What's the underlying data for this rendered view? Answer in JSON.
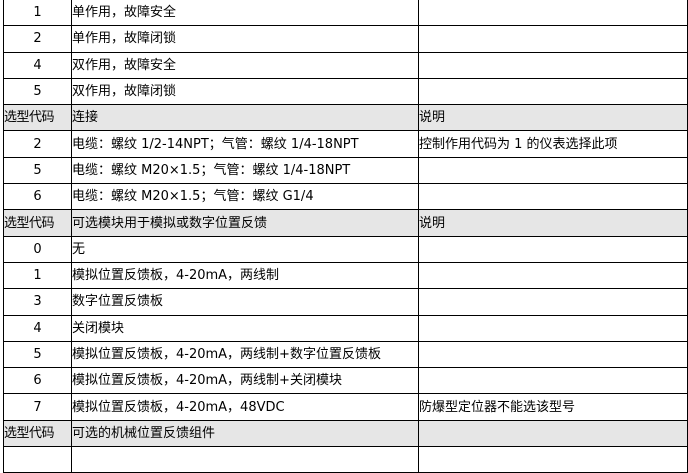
{
  "rows": [
    {
      "type": "row",
      "code": "1",
      "desc": "单作用，故障安全",
      "note": ""
    },
    {
      "type": "row",
      "code": "2",
      "desc": "单作用，故障闭锁",
      "note": ""
    },
    {
      "type": "row",
      "code": "4",
      "desc": "双作用，故障安全",
      "note": ""
    },
    {
      "type": "row",
      "code": "5",
      "desc": "双作用，故障闭锁",
      "note": ""
    },
    {
      "type": "header",
      "code": "选型代码",
      "desc": "连接",
      "note": "说明"
    },
    {
      "type": "row",
      "code": "2",
      "desc": "电缆：螺纹 1/2-14NPT；气管：螺纹 1/4-18NPT",
      "note": "控制作用代码为 1 的仪表选择此项"
    },
    {
      "type": "row",
      "code": "5",
      "desc": "电缆：螺纹 M20×1.5；气管：螺纹 1/4-18NPT",
      "note": ""
    },
    {
      "type": "row",
      "code": "6",
      "desc": "电缆：螺纹 M20×1.5；气管：螺纹 G1/4",
      "note": ""
    },
    {
      "type": "header",
      "code": "选型代码",
      "desc": "可选模块用于模拟或数字位置反馈",
      "note": "说明"
    },
    {
      "type": "row",
      "code": "0",
      "desc": "无",
      "note": ""
    },
    {
      "type": "row",
      "code": "1",
      "desc": "模拟位置反馈板，4-20mA，两线制",
      "note": ""
    },
    {
      "type": "row",
      "code": "3",
      "desc": "数字位置反馈板",
      "note": ""
    },
    {
      "type": "row",
      "code": "4",
      "desc": "关闭模块",
      "note": ""
    },
    {
      "type": "row",
      "code": "5",
      "desc": "模拟位置反馈板，4-20mA，两线制+数字位置反馈板",
      "note": ""
    },
    {
      "type": "row",
      "code": "6",
      "desc": "模拟位置反馈板，4-20mA，两线制+关闭模块",
      "note": ""
    },
    {
      "type": "row",
      "code": "7",
      "desc": "模拟位置反馈板，4-20mA，48VDC",
      "note": "防爆型定位器不能选该型号"
    },
    {
      "type": "header",
      "code": "选型代码",
      "desc": "可选的机械位置反馈组件",
      "note": ""
    },
    {
      "type": "row",
      "code": "",
      "desc": "",
      "note": ""
    }
  ]
}
